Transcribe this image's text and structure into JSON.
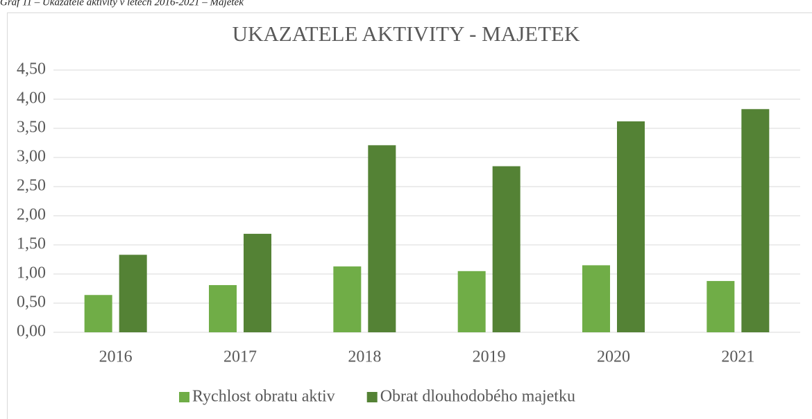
{
  "caption": "Graf 11 – Ukazatele aktivity v letech 2016-2021 – Majetek",
  "chart_data": {
    "type": "bar",
    "title": "UKAZATELE AKTIVITY - MAJETEK",
    "categories": [
      "2016",
      "2017",
      "2018",
      "2019",
      "2020",
      "2021"
    ],
    "series": [
      {
        "name": "Rychlost obratu aktiv",
        "color": "#70ad47",
        "values": [
          0.64,
          0.81,
          1.13,
          1.05,
          1.15,
          0.88
        ]
      },
      {
        "name": "Obrat dlouhodobého majetku",
        "color": "#548235",
        "values": [
          1.33,
          1.69,
          3.21,
          2.85,
          3.62,
          3.83
        ]
      }
    ],
    "ylim": [
      0,
      4.5
    ],
    "yticks": [
      {
        "value": 0,
        "label": "0,00"
      },
      {
        "value": 0.5,
        "label": "0,50"
      },
      {
        "value": 1,
        "label": "1,00"
      },
      {
        "value": 1.5,
        "label": "1,50"
      },
      {
        "value": 2,
        "label": "2,00"
      },
      {
        "value": 2.5,
        "label": "2,50"
      },
      {
        "value": 3,
        "label": "3,00"
      },
      {
        "value": 3.5,
        "label": "3,50"
      },
      {
        "value": 4,
        "label": "4,00"
      },
      {
        "value": 4.5,
        "label": "4,50"
      }
    ],
    "grid": true,
    "legend": "bottom"
  }
}
